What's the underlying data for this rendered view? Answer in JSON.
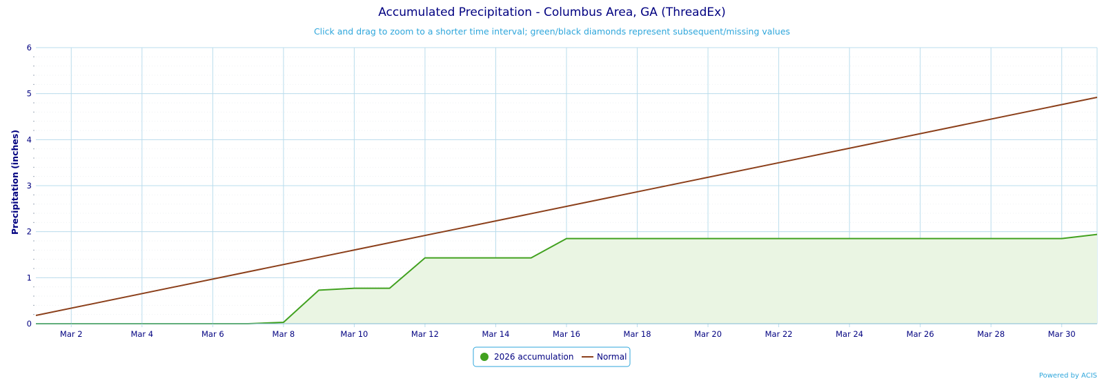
{
  "chart_data": {
    "type": "line",
    "title": "Accumulated Precipitation - Columbus Area, GA (ThreadEx)",
    "subtitle": "Click and drag to zoom to a shorter time interval; green/black diamonds represent subsequent/missing values",
    "ylabel": "Precipitation (inches)",
    "xlabel": "",
    "ylim": [
      0,
      6
    ],
    "yticks": [
      "0",
      "1",
      "2",
      "3",
      "4",
      "5",
      "6"
    ],
    "xlim": [
      1,
      31
    ],
    "xticks": [
      {
        "day": 2,
        "label": "Mar 2"
      },
      {
        "day": 4,
        "label": "Mar 4"
      },
      {
        "day": 6,
        "label": "Mar 6"
      },
      {
        "day": 8,
        "label": "Mar 8"
      },
      {
        "day": 10,
        "label": "Mar 10"
      },
      {
        "day": 12,
        "label": "Mar 12"
      },
      {
        "day": 14,
        "label": "Mar 14"
      },
      {
        "day": 16,
        "label": "Mar 16"
      },
      {
        "day": 18,
        "label": "Mar 18"
      },
      {
        "day": 20,
        "label": "Mar 20"
      },
      {
        "day": 22,
        "label": "Mar 22"
      },
      {
        "day": 24,
        "label": "Mar 24"
      },
      {
        "day": 26,
        "label": "Mar 26"
      },
      {
        "day": 28,
        "label": "Mar 28"
      },
      {
        "day": 30,
        "label": "Mar 30"
      }
    ],
    "grid": true,
    "legend_position": "bottom-center",
    "series": [
      {
        "name": "2026 accumulation",
        "color": "#41a11f",
        "fill": "#eaf5e3",
        "x": [
          1,
          2,
          3,
          4,
          5,
          6,
          7,
          8,
          9,
          10,
          11,
          12,
          13,
          14,
          15,
          16,
          17,
          18,
          19,
          20,
          21,
          22,
          23,
          24,
          25,
          26,
          27,
          28,
          29,
          30,
          31
        ],
        "values": [
          0,
          0,
          0,
          0,
          0,
          0,
          0,
          0.03,
          0.73,
          0.77,
          0.77,
          1.43,
          1.43,
          1.43,
          1.43,
          1.85,
          1.85,
          1.85,
          1.85,
          1.85,
          1.85,
          1.85,
          1.85,
          1.85,
          1.85,
          1.85,
          1.85,
          1.85,
          1.85,
          1.85,
          1.94
        ]
      },
      {
        "name": "Normal",
        "color": "#8b3f1a",
        "x": [
          1,
          31
        ],
        "values": [
          0.18,
          4.92
        ]
      }
    ]
  },
  "credit": "Powered by ACIS"
}
